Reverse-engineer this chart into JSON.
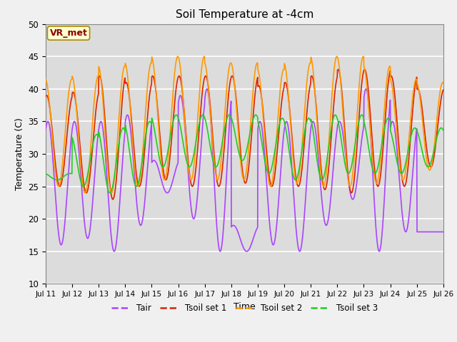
{
  "title": "Soil Temperature at -4cm",
  "xlabel": "Time",
  "ylabel": "Temperature (C)",
  "ylim": [
    10,
    50
  ],
  "yticks": [
    10,
    15,
    20,
    25,
    30,
    35,
    40,
    45,
    50
  ],
  "background_color": "#dcdcdc",
  "fig_background": "#f0f0f0",
  "annotation_text": "VR_met",
  "annotation_color": "#8b0000",
  "annotation_bg": "#ffffd0",
  "annotation_border": "#aa8800",
  "series_order": [
    "Tair",
    "Tsoil set 1",
    "Tsoil set 2",
    "Tsoil set 3"
  ],
  "series": {
    "Tair": {
      "color": "#aa44ff",
      "linewidth": 1.2,
      "tmin": 15.0,
      "tmax_vals": [
        35,
        35,
        35,
        36,
        29,
        39,
        40,
        19,
        35,
        35,
        35,
        35,
        40,
        35,
        18
      ],
      "tmin_vals": [
        16,
        17,
        15,
        19,
        24,
        20,
        15,
        15,
        16,
        15,
        19,
        23,
        15,
        18,
        18
      ],
      "phase_shift": 0.0
    },
    "Tsoil set 1": {
      "color": "#dd2200",
      "linewidth": 1.2,
      "tmax_vals": [
        39,
        39.5,
        42,
        41,
        42,
        42,
        42,
        42,
        40.5,
        41,
        42,
        43,
        43,
        42,
        40
      ],
      "tmin_vals": [
        25,
        24,
        23,
        25,
        26,
        25,
        25,
        25.5,
        25,
        25,
        24.5,
        24,
        25,
        25,
        28
      ],
      "phase_shift": 0.05
    },
    "Tsoil set 2": {
      "color": "#ff9900",
      "linewidth": 1.2,
      "tmax_vals": [
        41.5,
        42,
        43.5,
        44,
        45,
        45,
        44,
        44,
        43,
        44,
        45,
        45,
        43.5,
        41.5,
        41
      ],
      "tmin_vals": [
        25,
        24,
        24,
        25,
        26,
        26,
        26,
        26,
        25,
        25.5,
        25,
        25,
        25.5,
        26,
        27.5
      ],
      "phase_shift": 0.1
    },
    "Tsoil set 3": {
      "color": "#22cc22",
      "linewidth": 1.2,
      "tmax_vals": [
        27,
        33,
        34,
        35,
        36,
        36,
        36,
        36,
        35.5,
        35.5,
        36,
        36,
        35.5,
        34,
        34
      ],
      "tmin_vals": [
        26,
        25,
        24,
        25,
        28,
        28,
        28,
        29,
        27,
        26,
        26,
        27,
        27,
        27,
        28
      ],
      "phase_shift": 0.16
    }
  },
  "xtick_labels": [
    "Jul 11",
    "Jul 12",
    "Jul 13",
    "Jul 14",
    "Jul 15",
    "Jul 16",
    "Jul 17",
    "Jul 18",
    "Jul 19",
    "Jul 20",
    "Jul 21",
    "Jul 22",
    "Jul 23",
    "Jul 24",
    "Jul 25",
    "Jul 26"
  ],
  "xtick_positions": [
    0,
    1,
    2,
    3,
    4,
    5,
    6,
    7,
    8,
    9,
    10,
    11,
    12,
    13,
    14,
    15
  ]
}
